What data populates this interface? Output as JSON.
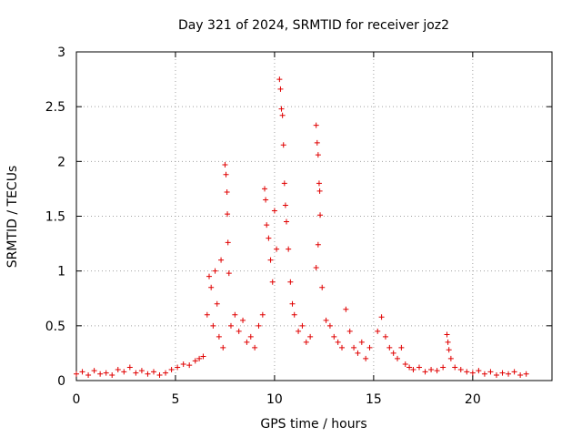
{
  "chart_data": {
    "type": "scatter",
    "title": "Day 321 of 2024, SRMTID for receiver joz2",
    "xlabel": "GPS time / hours",
    "ylabel": "SRMTID / TECUs",
    "xlim": [
      0,
      24
    ],
    "ylim": [
      0,
      3
    ],
    "xticks": [
      0,
      5,
      10,
      15,
      20
    ],
    "xtick_labels": [
      "0",
      "5",
      "10",
      "15",
      "20"
    ],
    "yticks": [
      0,
      0.5,
      1,
      1.5,
      2,
      2.5,
      3
    ],
    "ytick_labels": [
      "0",
      "0.5",
      "1",
      "1.5",
      "2",
      "2.5",
      "3"
    ],
    "grid": true,
    "marker": "+",
    "color": "#e00000",
    "series": [
      {
        "name": "joz2",
        "points": [
          [
            0.0,
            0.06
          ],
          [
            0.3,
            0.08
          ],
          [
            0.6,
            0.05
          ],
          [
            0.9,
            0.09
          ],
          [
            1.2,
            0.06
          ],
          [
            1.5,
            0.07
          ],
          [
            1.8,
            0.05
          ],
          [
            2.1,
            0.1
          ],
          [
            2.4,
            0.08
          ],
          [
            2.7,
            0.12
          ],
          [
            3.0,
            0.07
          ],
          [
            3.3,
            0.09
          ],
          [
            3.6,
            0.06
          ],
          [
            3.9,
            0.08
          ],
          [
            4.2,
            0.05
          ],
          [
            4.5,
            0.07
          ],
          [
            4.8,
            0.1
          ],
          [
            5.1,
            0.12
          ],
          [
            5.4,
            0.15
          ],
          [
            5.7,
            0.14
          ],
          [
            6.0,
            0.18
          ],
          [
            6.2,
            0.2
          ],
          [
            6.4,
            0.22
          ],
          [
            6.6,
            0.6
          ],
          [
            6.7,
            0.95
          ],
          [
            6.8,
            0.85
          ],
          [
            6.9,
            0.5
          ],
          [
            7.0,
            1.0
          ],
          [
            7.1,
            0.7
          ],
          [
            7.2,
            0.4
          ],
          [
            7.3,
            1.1
          ],
          [
            7.4,
            0.3
          ],
          [
            7.5,
            1.97
          ],
          [
            7.55,
            1.88
          ],
          [
            7.6,
            1.72
          ],
          [
            7.62,
            1.52
          ],
          [
            7.65,
            1.26
          ],
          [
            7.7,
            0.98
          ],
          [
            7.8,
            0.5
          ],
          [
            8.0,
            0.6
          ],
          [
            8.2,
            0.45
          ],
          [
            8.4,
            0.55
          ],
          [
            8.6,
            0.35
          ],
          [
            8.8,
            0.4
          ],
          [
            9.0,
            0.3
          ],
          [
            9.2,
            0.5
          ],
          [
            9.4,
            0.6
          ],
          [
            9.5,
            1.75
          ],
          [
            9.55,
            1.65
          ],
          [
            9.6,
            1.42
          ],
          [
            9.7,
            1.3
          ],
          [
            9.8,
            1.1
          ],
          [
            9.9,
            0.9
          ],
          [
            10.0,
            1.55
          ],
          [
            10.1,
            1.2
          ],
          [
            10.25,
            2.75
          ],
          [
            10.3,
            2.66
          ],
          [
            10.35,
            2.48
          ],
          [
            10.4,
            2.42
          ],
          [
            10.45,
            2.15
          ],
          [
            10.5,
            1.8
          ],
          [
            10.55,
            1.6
          ],
          [
            10.6,
            1.45
          ],
          [
            10.7,
            1.2
          ],
          [
            10.8,
            0.9
          ],
          [
            10.9,
            0.7
          ],
          [
            11.0,
            0.6
          ],
          [
            11.2,
            0.45
          ],
          [
            11.4,
            0.5
          ],
          [
            11.6,
            0.35
          ],
          [
            11.8,
            0.4
          ],
          [
            12.1,
            2.33
          ],
          [
            12.15,
            2.17
          ],
          [
            12.2,
            2.06
          ],
          [
            12.25,
            1.8
          ],
          [
            12.28,
            1.73
          ],
          [
            12.3,
            1.51
          ],
          [
            12.2,
            1.24
          ],
          [
            12.1,
            1.03
          ],
          [
            12.4,
            0.85
          ],
          [
            12.6,
            0.55
          ],
          [
            12.8,
            0.5
          ],
          [
            13.0,
            0.4
          ],
          [
            13.2,
            0.35
          ],
          [
            13.4,
            0.3
          ],
          [
            13.6,
            0.65
          ],
          [
            13.8,
            0.45
          ],
          [
            14.0,
            0.3
          ],
          [
            14.2,
            0.25
          ],
          [
            14.4,
            0.35
          ],
          [
            14.6,
            0.2
          ],
          [
            14.8,
            0.3
          ],
          [
            15.2,
            0.45
          ],
          [
            15.4,
            0.58
          ],
          [
            15.6,
            0.4
          ],
          [
            15.8,
            0.3
          ],
          [
            16.0,
            0.25
          ],
          [
            16.2,
            0.2
          ],
          [
            16.4,
            0.3
          ],
          [
            16.6,
            0.15
          ],
          [
            16.8,
            0.12
          ],
          [
            17.0,
            0.1
          ],
          [
            17.3,
            0.12
          ],
          [
            17.6,
            0.08
          ],
          [
            17.9,
            0.1
          ],
          [
            18.2,
            0.09
          ],
          [
            18.5,
            0.12
          ],
          [
            18.7,
            0.42
          ],
          [
            18.75,
            0.35
          ],
          [
            18.8,
            0.28
          ],
          [
            18.9,
            0.2
          ],
          [
            19.1,
            0.12
          ],
          [
            19.4,
            0.1
          ],
          [
            19.7,
            0.08
          ],
          [
            20.0,
            0.07
          ],
          [
            20.3,
            0.09
          ],
          [
            20.6,
            0.06
          ],
          [
            20.9,
            0.08
          ],
          [
            21.2,
            0.05
          ],
          [
            21.5,
            0.07
          ],
          [
            21.8,
            0.06
          ],
          [
            22.1,
            0.08
          ],
          [
            22.4,
            0.05
          ],
          [
            22.7,
            0.06
          ]
        ]
      }
    ]
  }
}
